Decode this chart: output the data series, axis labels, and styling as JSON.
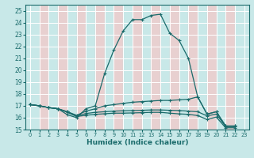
{
  "title": "",
  "xlabel": "Humidex (Indice chaleur)",
  "xlim": [
    -0.5,
    23.5
  ],
  "ylim": [
    15,
    25.5
  ],
  "xticks": [
    0,
    1,
    2,
    3,
    4,
    5,
    6,
    7,
    8,
    9,
    10,
    11,
    12,
    13,
    14,
    15,
    16,
    17,
    18,
    19,
    20,
    21,
    22,
    23
  ],
  "yticks": [
    15,
    16,
    17,
    18,
    19,
    20,
    21,
    22,
    23,
    24,
    25
  ],
  "bg_color": "#c8e8e8",
  "line_color": "#1a6b6b",
  "grid_color_major": "#ffffff",
  "line1_x": [
    0,
    1,
    2,
    3,
    4,
    5,
    6,
    7,
    8,
    9,
    10,
    11,
    12,
    13,
    14,
    15,
    16,
    17,
    18,
    19,
    20,
    21,
    22
  ],
  "line1_y": [
    17.1,
    17.0,
    16.85,
    16.75,
    16.25,
    16.0,
    16.75,
    17.0,
    19.7,
    21.7,
    23.3,
    24.25,
    24.25,
    24.6,
    24.7,
    23.1,
    22.5,
    21.0,
    17.75,
    16.3,
    16.5,
    15.3,
    15.3
  ],
  "line2_x": [
    0,
    1,
    2,
    3,
    4,
    5,
    6,
    7,
    8,
    9,
    10,
    11,
    12,
    13,
    14,
    15,
    16,
    17,
    18,
    19,
    20,
    21,
    22
  ],
  "line2_y": [
    17.1,
    17.0,
    16.85,
    16.75,
    16.5,
    16.2,
    16.55,
    16.75,
    17.0,
    17.1,
    17.2,
    17.3,
    17.35,
    17.4,
    17.45,
    17.45,
    17.5,
    17.55,
    17.75,
    16.3,
    16.5,
    15.3,
    15.3
  ],
  "line3_x": [
    0,
    1,
    2,
    3,
    4,
    5,
    6,
    7,
    8,
    9,
    10,
    11,
    12,
    13,
    14,
    15,
    16,
    17,
    18,
    19,
    20,
    21,
    22
  ],
  "line3_y": [
    17.1,
    17.0,
    16.85,
    16.75,
    16.5,
    16.15,
    16.35,
    16.45,
    16.5,
    16.55,
    16.58,
    16.6,
    16.62,
    16.65,
    16.65,
    16.62,
    16.6,
    16.55,
    16.5,
    16.15,
    16.3,
    15.25,
    15.25
  ],
  "line4_x": [
    0,
    1,
    2,
    3,
    4,
    5,
    6,
    7,
    8,
    9,
    10,
    11,
    12,
    13,
    14,
    15,
    16,
    17,
    18,
    19,
    20,
    21,
    22
  ],
  "line4_y": [
    17.1,
    17.0,
    16.85,
    16.75,
    16.45,
    16.1,
    16.2,
    16.28,
    16.33,
    16.38,
    16.38,
    16.4,
    16.42,
    16.45,
    16.45,
    16.38,
    16.32,
    16.28,
    16.18,
    15.85,
    16.05,
    15.15,
    15.15
  ]
}
